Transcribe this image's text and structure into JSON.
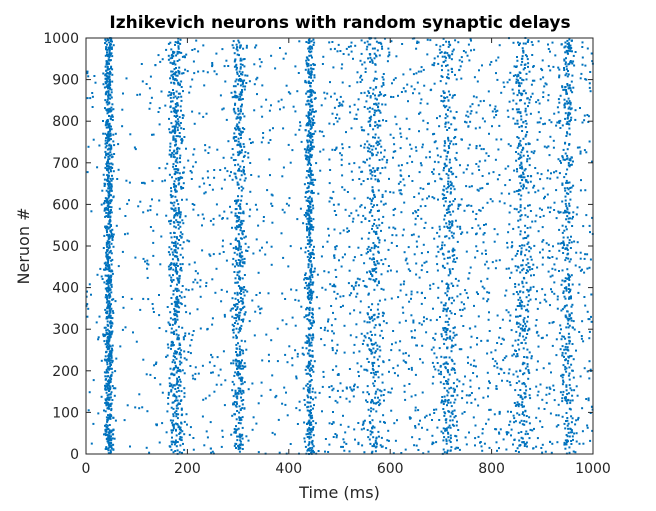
{
  "chart_data": {
    "type": "scatter",
    "title": "Izhikevich neurons with random synaptic delays",
    "xlabel": "Time (ms)",
    "ylabel": "Neruon #",
    "xlim": [
      0,
      1000
    ],
    "ylim": [
      0,
      1000
    ],
    "xticks": [
      "0",
      "200",
      "400",
      "600",
      "800",
      "1000"
    ],
    "yticks": [
      "0",
      "100",
      "200",
      "300",
      "400",
      "500",
      "600",
      "700",
      "800",
      "900",
      "1000"
    ],
    "grid": false,
    "marker_color": "#0072BD",
    "series": [
      {
        "marker": "dot",
        "bursts": [
          {
            "center_ms": 45,
            "width_ms": 7,
            "spikes": 900
          },
          {
            "center_ms": 178,
            "width_ms": 12,
            "spikes": 620
          },
          {
            "center_ms": 302,
            "width_ms": 11,
            "spikes": 520
          },
          {
            "center_ms": 442,
            "width_ms": 7,
            "spikes": 620
          },
          {
            "center_ms": 568,
            "width_ms": 14,
            "spikes": 330
          },
          {
            "center_ms": 715,
            "width_ms": 14,
            "spikes": 320
          },
          {
            "center_ms": 862,
            "width_ms": 13,
            "spikes": 330
          },
          {
            "center_ms": 950,
            "width_ms": 10,
            "spikes": 330
          }
        ],
        "background_spikes_per_ms_region": [
          {
            "from_ms": 0,
            "to_ms": 130,
            "spikes": 140
          },
          {
            "from_ms": 130,
            "to_ms": 480,
            "spikes": 620
          },
          {
            "from_ms": 480,
            "to_ms": 1000,
            "spikes": 1750
          }
        ]
      }
    ]
  }
}
